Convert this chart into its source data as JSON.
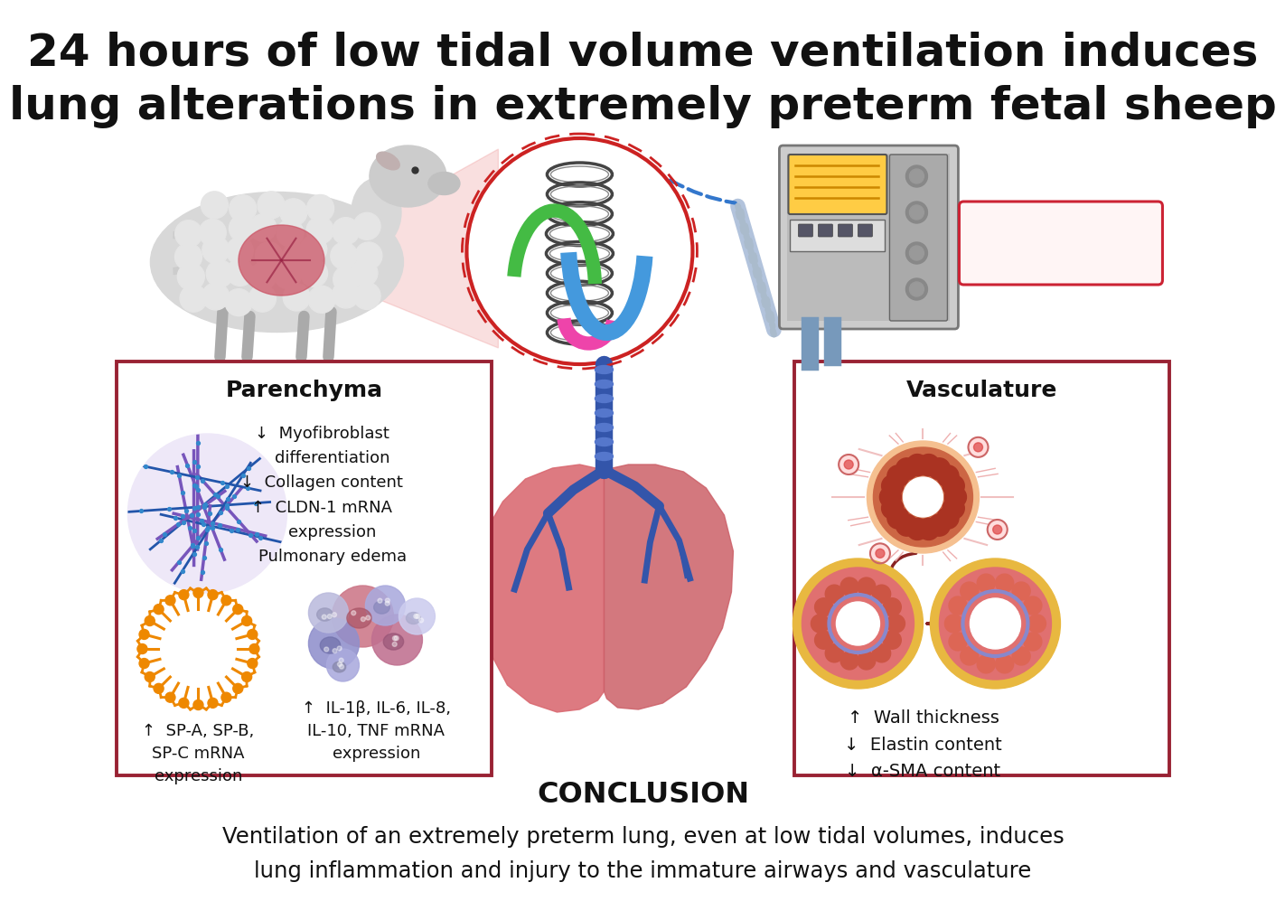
{
  "title_line1": "24 hours of low tidal volume ventilation induces",
  "title_line2": "lung alterations in extremely preterm fetal sheep",
  "title_fontsize": 36,
  "title_color": "#111111",
  "bg_color": "#ffffff",
  "box_border_color": "#992233",
  "conclusion_label": "CONCLUSION",
  "conclusion_text_line1": "Ventilation of an extremely preterm lung, even at low tidal volumes, induces",
  "conclusion_text_line2": "lung inflammation and injury to the immature airways and vasculature",
  "parenchyma_title": "Parenchyma",
  "parenchyma_text": "↓  Myofibroblast\n    differentiation\n↓  Collagen content\n↑  CLDN-1 mRNA\n    expression\n    Pulmonary edema",
  "parenchyma_text2": "↑  SP-A, SP-B,\nSP-C mRNA\nexpression",
  "parenchyma_text3": "↑  IL-1β, IL-6, IL-8,\nIL-10, TNF mRNA\nexpression",
  "vasculature_title": "Vasculature",
  "vasculature_text": "↑  Wall thickness\n↓  Elastin content\n↓  α-SMA content"
}
